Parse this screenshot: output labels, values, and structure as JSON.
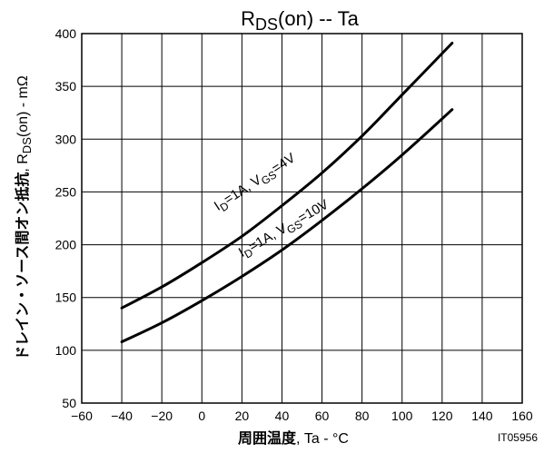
{
  "chart_data": {
    "type": "line",
    "title": {
      "main": "R",
      "sub": "DS",
      "rest": "(on)  --  Ta"
    },
    "xlabel": {
      "jp": "周囲温度",
      "rest": ", Ta - °C"
    },
    "ylabel": {
      "jp": "ドレイン・ソース間オン抵抗",
      "sep": ", R",
      "sub": "DS",
      "rest": "(on)  -  mΩ"
    },
    "xlim": [
      -60,
      160
    ],
    "ylim": [
      50,
      400
    ],
    "x_ticks": [
      "−60",
      "−40",
      "−20",
      "0",
      "20",
      "40",
      "60",
      "80",
      "100",
      "120",
      "140",
      "160"
    ],
    "y_ticks": [
      "50",
      "100",
      "150",
      "200",
      "250",
      "300",
      "350",
      "400"
    ],
    "grid": true,
    "series": [
      {
        "label": {
          "p1": "I",
          "s1": "D",
          "p2": "=1A, V",
          "s2": "GS",
          "p3": "=4V"
        },
        "x": [
          -40,
          -20,
          0,
          20,
          40,
          60,
          80,
          100,
          125
        ],
        "y": [
          140,
          160,
          183,
          208,
          237,
          268,
          303,
          342,
          391
        ]
      },
      {
        "label": {
          "p1": "I",
          "s1": "D",
          "p2": "=1A, V",
          "s2": "GS",
          "p3": "=10V"
        },
        "x": [
          -40,
          -20,
          0,
          20,
          40,
          60,
          80,
          100,
          125
        ],
        "y": [
          108,
          126,
          147,
          170,
          195,
          223,
          253,
          285,
          328
        ]
      }
    ],
    "figure_code": "IT05956"
  }
}
